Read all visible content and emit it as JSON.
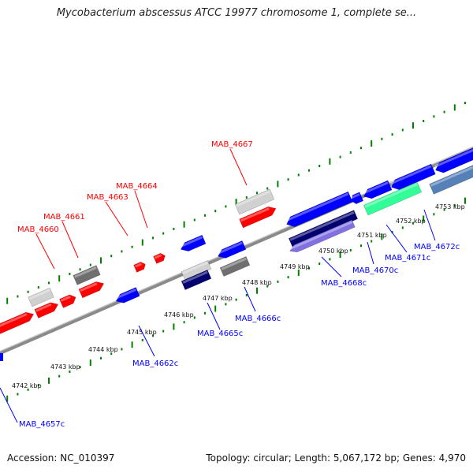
{
  "title": "Mycobacterium abscessus ATCC 19977 chromosome 1, complete se...",
  "footer": {
    "accession": "Accession: NC_010397",
    "summary": "Topology: circular; Length: 5,067,172 bp; Genes: 4,970"
  },
  "colors": {
    "forward": "#ff0000",
    "reverse": "#0000ff",
    "backbone": "#888888",
    "tick": "#008000",
    "other_light": "#d0d0d0",
    "other_dark": "#6f6f6f",
    "navy": "#00006e",
    "lavender": "#8070e0",
    "mint": "#33ff99",
    "steel": "#5580b8"
  },
  "scale": {
    "labels": [
      "4742 kbp",
      "4743 kbp",
      "4744 kbp",
      "4745 kbp",
      "4746 kbp",
      "4747 kbp",
      "4748 kbp",
      "4749 kbp",
      "4750 kbp",
      "4751 kbp",
      "4752 kbp",
      "4753 kbp"
    ]
  },
  "forward_labels": [
    "MAB_4660",
    "MAB_4661",
    "MAB_4663",
    "MAB_4664",
    "MAB_4667"
  ],
  "reverse_labels": [
    "MAB_4657c",
    "MAB_4662c",
    "MAB_4665c",
    "MAB_4666c",
    "MAB_4668c",
    "MAB_4670c",
    "MAB_4671c",
    "MAB_4672c"
  ]
}
